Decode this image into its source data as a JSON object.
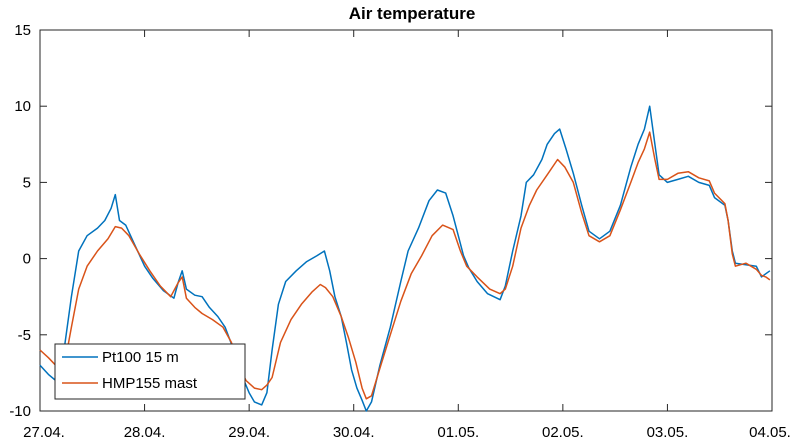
{
  "chart_data": {
    "type": "line",
    "title": "Air temperature",
    "xlabel": "",
    "ylabel": "",
    "x_tick_labels": [
      "27.04.",
      "28.04.",
      "29.04.",
      "30.04.",
      "01.05.",
      "02.05.",
      "03.05.",
      "04.05."
    ],
    "y_ticks": [
      -10,
      -5,
      0,
      5,
      10,
      15
    ],
    "xlim_days": [
      0,
      7
    ],
    "ylim": [
      -10,
      15
    ],
    "grid": false,
    "legend_position": "bottom-left",
    "series": [
      {
        "name": "Pt100 15 m",
        "color": "#0072BD",
        "points": [
          [
            0.0,
            -7.0
          ],
          [
            0.08,
            -7.6
          ],
          [
            0.15,
            -8.0
          ],
          [
            0.22,
            -6.5
          ],
          [
            0.3,
            -2.5
          ],
          [
            0.37,
            0.5
          ],
          [
            0.45,
            1.5
          ],
          [
            0.55,
            2.0
          ],
          [
            0.62,
            2.5
          ],
          [
            0.68,
            3.3
          ],
          [
            0.72,
            4.2
          ],
          [
            0.76,
            2.5
          ],
          [
            0.82,
            2.2
          ],
          [
            0.9,
            1.0
          ],
          [
            1.0,
            -0.5
          ],
          [
            1.08,
            -1.3
          ],
          [
            1.18,
            -2.1
          ],
          [
            1.28,
            -2.6
          ],
          [
            1.32,
            -1.6
          ],
          [
            1.36,
            -0.8
          ],
          [
            1.4,
            -2.0
          ],
          [
            1.48,
            -2.4
          ],
          [
            1.55,
            -2.5
          ],
          [
            1.62,
            -3.2
          ],
          [
            1.7,
            -3.8
          ],
          [
            1.77,
            -4.5
          ],
          [
            1.83,
            -5.6
          ],
          [
            1.87,
            -6.3
          ],
          [
            1.92,
            -7.5
          ],
          [
            2.0,
            -8.8
          ],
          [
            2.05,
            -9.4
          ],
          [
            2.12,
            -9.6
          ],
          [
            2.17,
            -8.8
          ],
          [
            2.22,
            -6.0
          ],
          [
            2.28,
            -3.0
          ],
          [
            2.35,
            -1.5
          ],
          [
            2.45,
            -0.8
          ],
          [
            2.55,
            -0.2
          ],
          [
            2.65,
            0.2
          ],
          [
            2.72,
            0.5
          ],
          [
            2.77,
            -0.8
          ],
          [
            2.82,
            -2.5
          ],
          [
            2.88,
            -3.8
          ],
          [
            2.93,
            -5.5
          ],
          [
            2.98,
            -7.3
          ],
          [
            3.03,
            -8.5
          ],
          [
            3.08,
            -9.3
          ],
          [
            3.12,
            -10.0
          ],
          [
            3.17,
            -9.4
          ],
          [
            3.25,
            -7.0
          ],
          [
            3.35,
            -4.5
          ],
          [
            3.45,
            -1.5
          ],
          [
            3.52,
            0.5
          ],
          [
            3.62,
            2.0
          ],
          [
            3.72,
            3.8
          ],
          [
            3.8,
            4.5
          ],
          [
            3.88,
            4.3
          ],
          [
            3.95,
            2.8
          ],
          [
            4.0,
            1.5
          ],
          [
            4.05,
            0.2
          ],
          [
            4.1,
            -0.6
          ],
          [
            4.18,
            -1.5
          ],
          [
            4.28,
            -2.3
          ],
          [
            4.4,
            -2.7
          ],
          [
            4.45,
            -1.8
          ],
          [
            4.52,
            0.5
          ],
          [
            4.6,
            2.8
          ],
          [
            4.65,
            5.0
          ],
          [
            4.72,
            5.5
          ],
          [
            4.8,
            6.5
          ],
          [
            4.85,
            7.5
          ],
          [
            4.92,
            8.2
          ],
          [
            4.97,
            8.5
          ],
          [
            5.03,
            7.2
          ],
          [
            5.1,
            5.6
          ],
          [
            5.18,
            3.5
          ],
          [
            5.25,
            1.8
          ],
          [
            5.35,
            1.3
          ],
          [
            5.45,
            1.8
          ],
          [
            5.55,
            3.5
          ],
          [
            5.65,
            6.0
          ],
          [
            5.72,
            7.5
          ],
          [
            5.78,
            8.5
          ],
          [
            5.83,
            10.0
          ],
          [
            5.88,
            7.5
          ],
          [
            5.92,
            5.5
          ],
          [
            6.0,
            5.0
          ],
          [
            6.1,
            5.2
          ],
          [
            6.2,
            5.4
          ],
          [
            6.3,
            5.0
          ],
          [
            6.4,
            4.8
          ],
          [
            6.45,
            4.0
          ],
          [
            6.55,
            3.5
          ],
          [
            6.58,
            2.5
          ],
          [
            6.62,
            0.5
          ],
          [
            6.65,
            -0.3
          ],
          [
            6.75,
            -0.4
          ],
          [
            6.85,
            -0.5
          ],
          [
            6.9,
            -1.2
          ],
          [
            6.94,
            -1.0
          ],
          [
            6.98,
            -0.8
          ]
        ]
      },
      {
        "name": "HMP155 mast",
        "color": "#D95319",
        "points": [
          [
            0.0,
            -6.0
          ],
          [
            0.08,
            -6.5
          ],
          [
            0.15,
            -7.0
          ],
          [
            0.22,
            -7.5
          ],
          [
            0.3,
            -4.5
          ],
          [
            0.37,
            -2.0
          ],
          [
            0.45,
            -0.5
          ],
          [
            0.55,
            0.5
          ],
          [
            0.65,
            1.3
          ],
          [
            0.72,
            2.1
          ],
          [
            0.78,
            2.0
          ],
          [
            0.85,
            1.5
          ],
          [
            0.95,
            0.3
          ],
          [
            1.05,
            -0.8
          ],
          [
            1.15,
            -1.8
          ],
          [
            1.25,
            -2.5
          ],
          [
            1.32,
            -1.6
          ],
          [
            1.36,
            -1.2
          ],
          [
            1.4,
            -2.6
          ],
          [
            1.48,
            -3.2
          ],
          [
            1.55,
            -3.6
          ],
          [
            1.65,
            -4.0
          ],
          [
            1.75,
            -4.5
          ],
          [
            1.83,
            -5.5
          ],
          [
            1.9,
            -7.0
          ],
          [
            1.97,
            -8.0
          ],
          [
            2.05,
            -8.5
          ],
          [
            2.12,
            -8.6
          ],
          [
            2.17,
            -8.3
          ],
          [
            2.22,
            -7.8
          ],
          [
            2.3,
            -5.5
          ],
          [
            2.4,
            -4.0
          ],
          [
            2.5,
            -3.0
          ],
          [
            2.6,
            -2.2
          ],
          [
            2.68,
            -1.7
          ],
          [
            2.73,
            -1.9
          ],
          [
            2.8,
            -2.5
          ],
          [
            2.88,
            -3.8
          ],
          [
            2.95,
            -5.2
          ],
          [
            3.02,
            -6.8
          ],
          [
            3.08,
            -8.5
          ],
          [
            3.12,
            -9.2
          ],
          [
            3.17,
            -9.0
          ],
          [
            3.25,
            -7.2
          ],
          [
            3.35,
            -5.0
          ],
          [
            3.45,
            -2.8
          ],
          [
            3.55,
            -1.0
          ],
          [
            3.65,
            0.2
          ],
          [
            3.75,
            1.5
          ],
          [
            3.85,
            2.2
          ],
          [
            3.95,
            1.9
          ],
          [
            4.02,
            0.5
          ],
          [
            4.08,
            -0.5
          ],
          [
            4.18,
            -1.2
          ],
          [
            4.3,
            -2.0
          ],
          [
            4.4,
            -2.3
          ],
          [
            4.45,
            -2.0
          ],
          [
            4.52,
            -0.5
          ],
          [
            4.6,
            2.0
          ],
          [
            4.68,
            3.5
          ],
          [
            4.75,
            4.5
          ],
          [
            4.85,
            5.5
          ],
          [
            4.95,
            6.5
          ],
          [
            5.02,
            6.0
          ],
          [
            5.1,
            5.0
          ],
          [
            5.18,
            3.0
          ],
          [
            5.25,
            1.5
          ],
          [
            5.35,
            1.1
          ],
          [
            5.45,
            1.5
          ],
          [
            5.55,
            3.2
          ],
          [
            5.65,
            5.0
          ],
          [
            5.72,
            6.3
          ],
          [
            5.78,
            7.2
          ],
          [
            5.83,
            8.3
          ],
          [
            5.88,
            6.5
          ],
          [
            5.92,
            5.2
          ],
          [
            6.0,
            5.2
          ],
          [
            6.1,
            5.6
          ],
          [
            6.2,
            5.7
          ],
          [
            6.3,
            5.3
          ],
          [
            6.4,
            5.1
          ],
          [
            6.45,
            4.3
          ],
          [
            6.55,
            3.6
          ],
          [
            6.58,
            2.5
          ],
          [
            6.62,
            0.3
          ],
          [
            6.65,
            -0.5
          ],
          [
            6.75,
            -0.3
          ],
          [
            6.85,
            -0.7
          ],
          [
            6.9,
            -1.1
          ],
          [
            6.94,
            -1.2
          ],
          [
            6.98,
            -1.4
          ]
        ]
      }
    ]
  }
}
